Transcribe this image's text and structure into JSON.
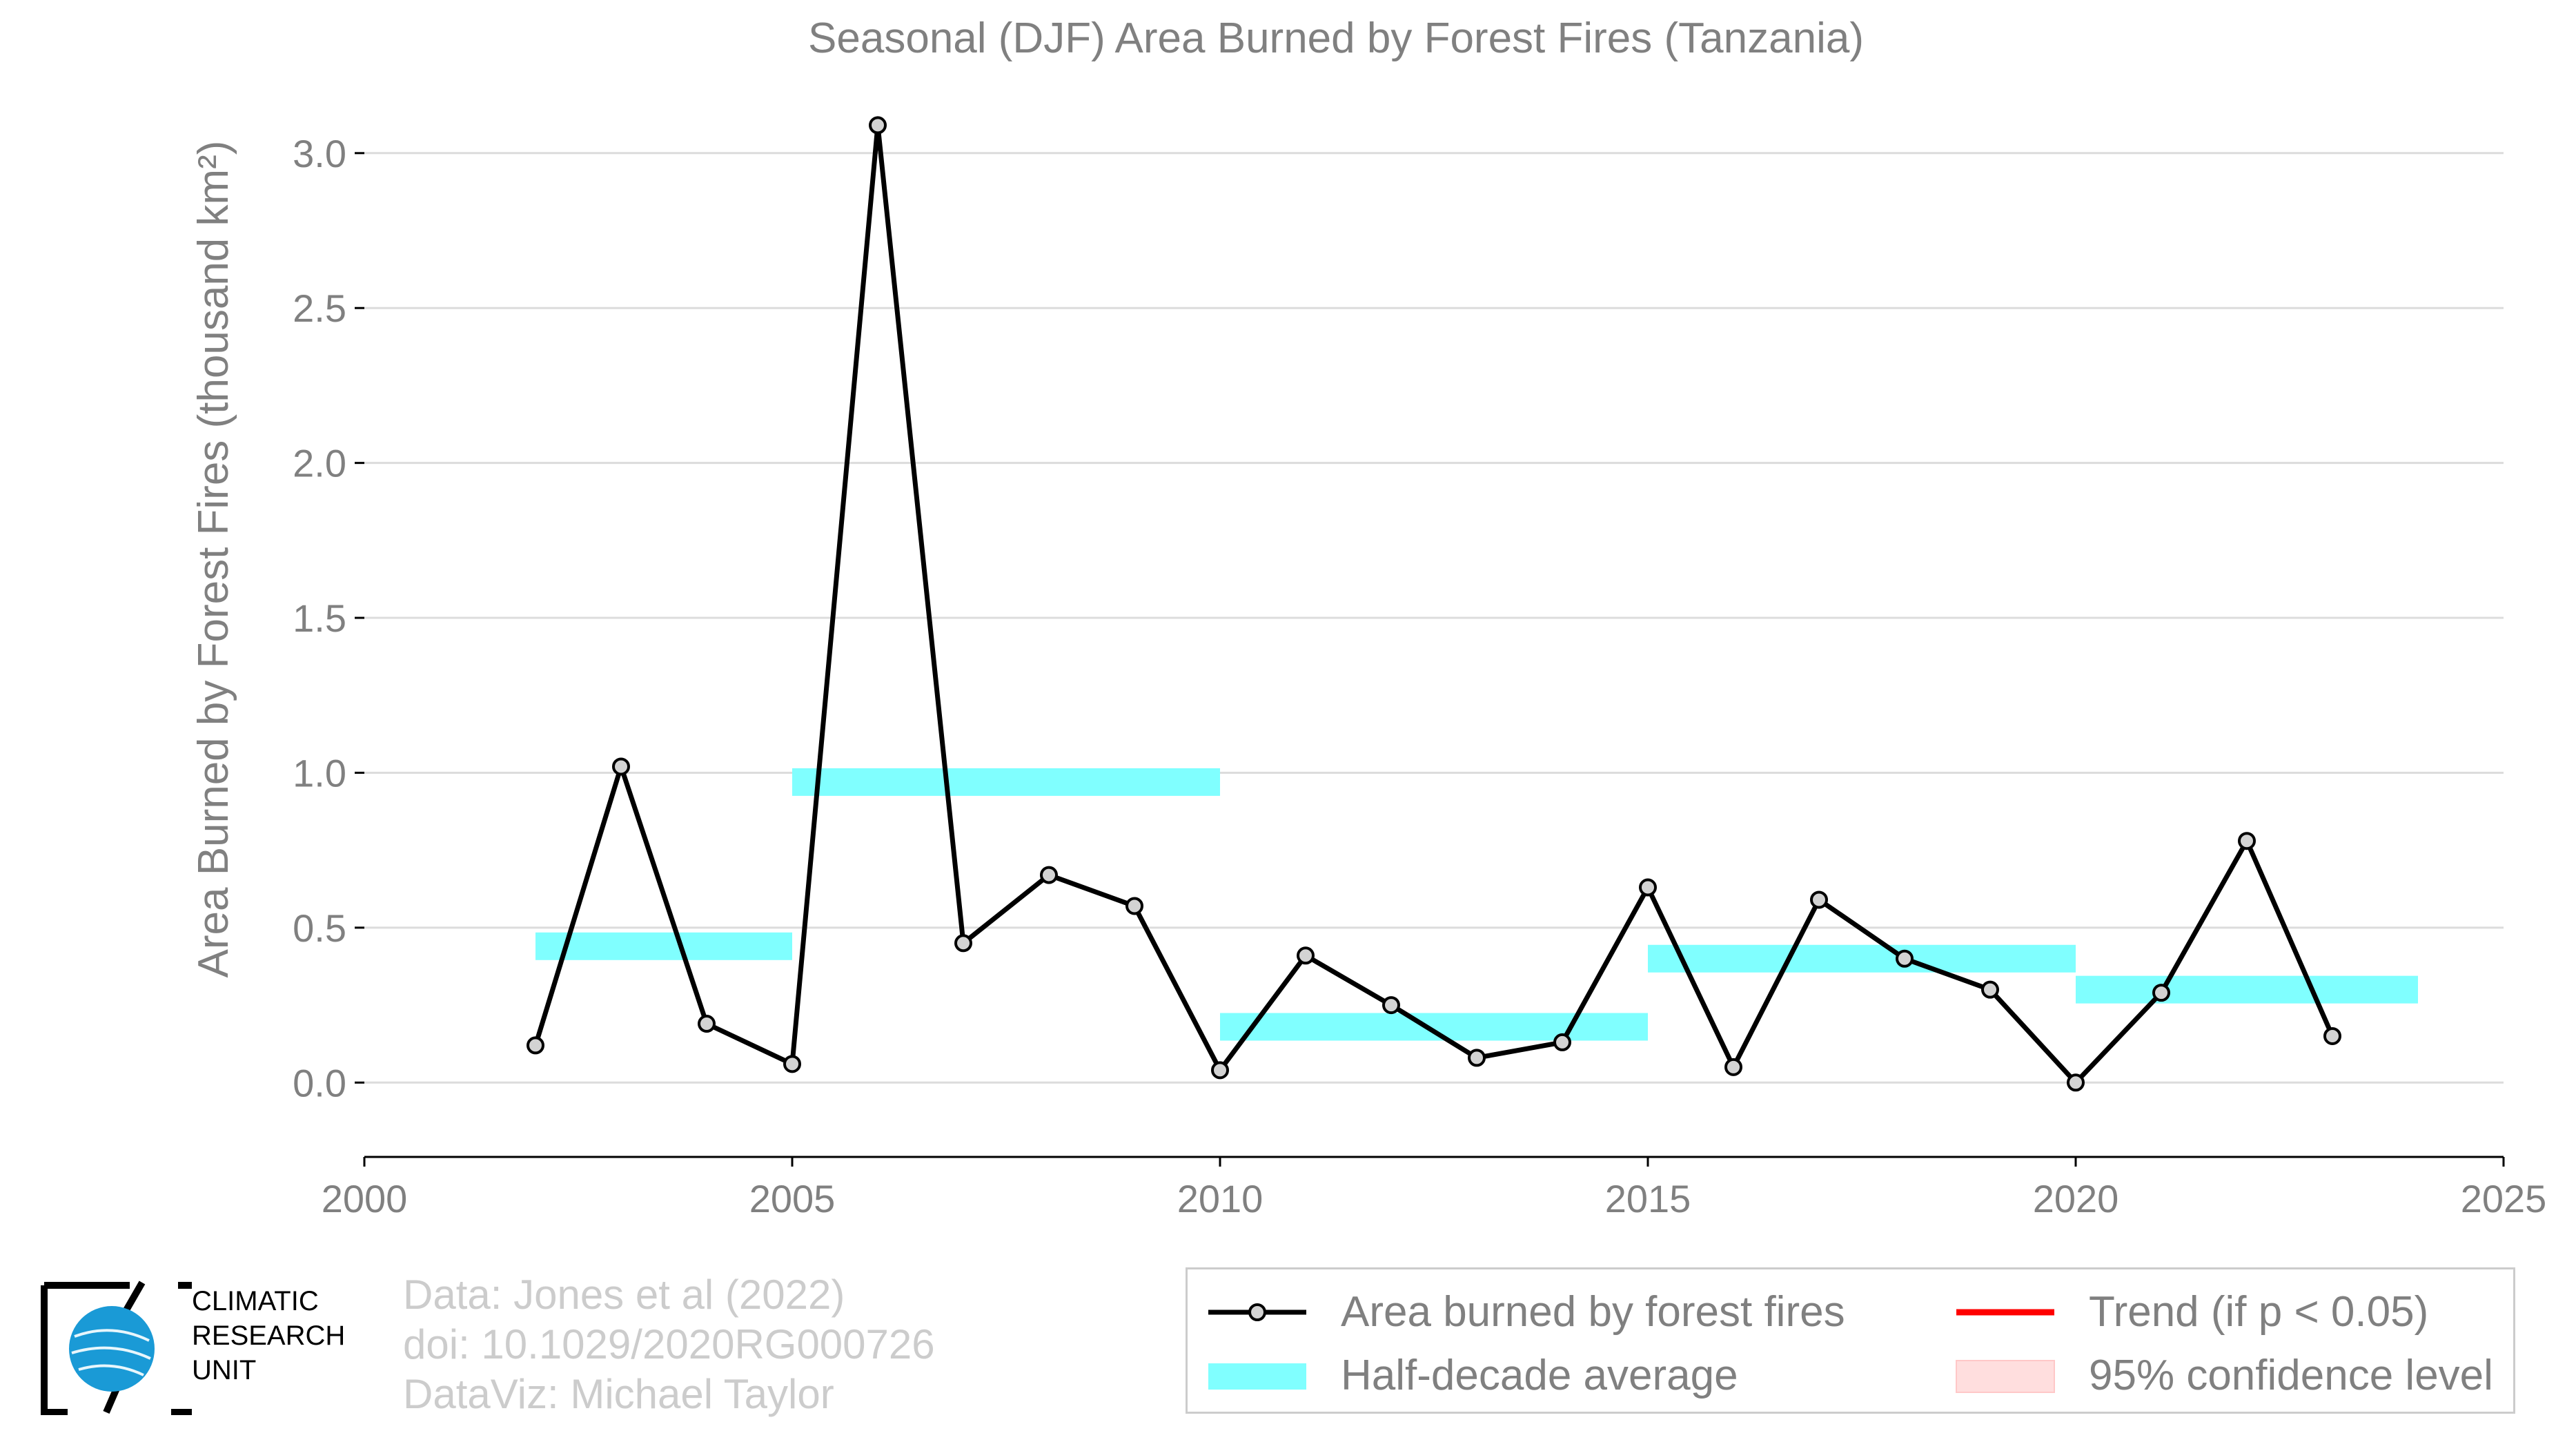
{
  "chart_data": {
    "type": "line",
    "title": "Seasonal (DJF) Area Burned by Forest Fires (Tanzania)",
    "ylabel": "Area Burned by Forest Fires (thousand km²)",
    "xlabel": "",
    "xlim": [
      2000,
      2025
    ],
    "ylim": [
      -0.24,
      3.16
    ],
    "x_ticks": [
      "2000",
      "2005",
      "2010",
      "2015",
      "2020",
      "2025"
    ],
    "y_ticks": [
      "0.0",
      "0.5",
      "1.0",
      "1.5",
      "2.0",
      "2.5",
      "3.0"
    ],
    "grid": true,
    "series": [
      {
        "name": "Area burned by forest fires",
        "color": "#000000",
        "marker_fill": "#d3d3d3",
        "x": [
          2002,
          2003,
          2004,
          2005,
          2006,
          2007,
          2008,
          2009,
          2010,
          2011,
          2012,
          2013,
          2014,
          2015,
          2016,
          2017,
          2018,
          2019,
          2020,
          2021,
          2022,
          2023
        ],
        "y": [
          0.12,
          1.02,
          0.19,
          0.06,
          3.09,
          0.45,
          0.67,
          0.57,
          0.04,
          0.41,
          0.25,
          0.08,
          0.13,
          0.63,
          0.05,
          0.59,
          0.4,
          0.3,
          0.0,
          0.29,
          0.78,
          0.15
        ]
      },
      {
        "name": "Half-decade average",
        "color": "#80ffff",
        "segments": [
          {
            "x0": 2002,
            "x1": 2005,
            "y": 0.44
          },
          {
            "x0": 2005,
            "x1": 2010,
            "y": 0.97
          },
          {
            "x0": 2010,
            "x1": 2015,
            "y": 0.18
          },
          {
            "x0": 2015,
            "x1": 2020,
            "y": 0.4
          },
          {
            "x0": 2020,
            "x1": 2024,
            "y": 0.3
          }
        ]
      }
    ]
  },
  "legend": {
    "items": [
      {
        "label": "Area burned by forest fires"
      },
      {
        "label": "Half-decade average"
      },
      {
        "label": "Trend (if p < 0.05)",
        "color": "#ff0000"
      },
      {
        "label": "95% confidence level",
        "color": "#ffdede"
      }
    ]
  },
  "credits": {
    "line1": "Data: Jones et al (2022)",
    "line2": "doi: 10.1029/2020RG000726",
    "line3": "DataViz: Michael Taylor"
  },
  "logo": {
    "line1": "CLIMATIC",
    "line2": "RESEARCH",
    "line3": "UNIT"
  }
}
